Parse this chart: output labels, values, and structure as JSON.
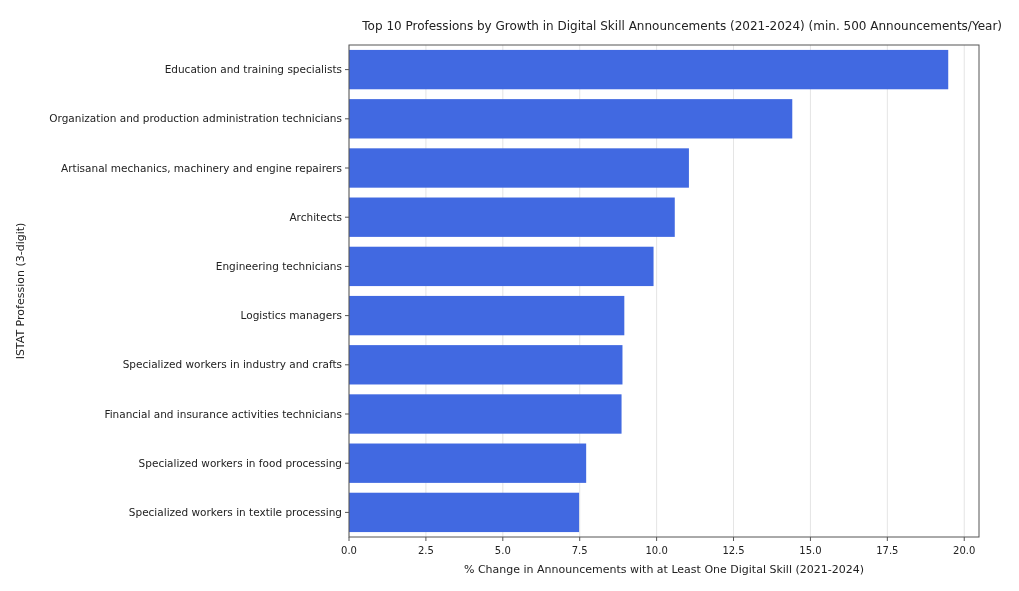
{
  "chart_data": {
    "type": "bar",
    "orientation": "horizontal",
    "title": "Top 10 Professions by Growth in Digital Skill Announcements (2021-2024) (min. 500 Announcements/Year)",
    "xlabel": "% Change in Announcements with at Least One Digital Skill (2021-2024)",
    "ylabel": "ISTAT Profession (3-digit)",
    "categories": [
      "Education and training specialists",
      "Organization and production administration technicians",
      "Artisanal mechanics, machinery and engine repairers",
      "Architects",
      "Engineering technicians",
      "Logistics managers",
      "Specialized workers in industry and crafts",
      "Financial and insurance activities technicians",
      "Specialized workers in food processing",
      "Specialized workers in textile processing"
    ],
    "values": [
      19.48,
      14.41,
      11.05,
      10.59,
      9.9,
      8.95,
      8.89,
      8.86,
      7.71,
      7.48
    ],
    "color": "#4169e1",
    "xlim": [
      0,
      20.48
    ],
    "xticks": [
      {
        "value": 0,
        "label": "0.0"
      },
      {
        "value": 2.5,
        "label": "2.5"
      },
      {
        "value": 5,
        "label": "5.0"
      },
      {
        "value": 7.5,
        "label": "7.5"
      },
      {
        "value": 10,
        "label": "10.0"
      },
      {
        "value": 12.5,
        "label": "12.5"
      },
      {
        "value": 15,
        "label": "15.0"
      },
      {
        "value": 17.5,
        "label": "17.5"
      },
      {
        "value": 20,
        "label": "20.0"
      }
    ],
    "grid": "x"
  }
}
